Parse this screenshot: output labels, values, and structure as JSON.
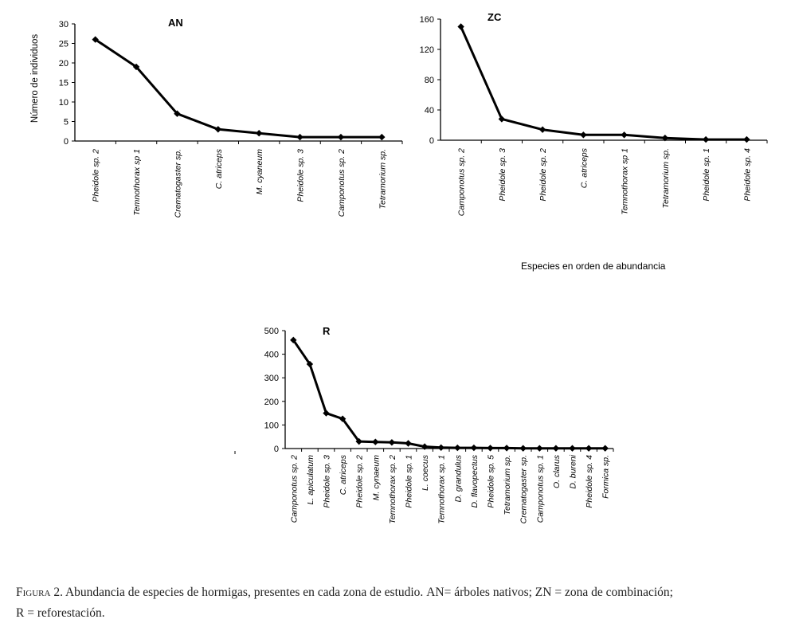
{
  "chart_data": [
    {
      "type": "line",
      "title": "AN",
      "ylabel": "Número de individuos",
      "ylim": [
        0,
        30
      ],
      "yticks": [
        0,
        5,
        10,
        15,
        20,
        25,
        30
      ],
      "categories": [
        "Pheidole sp. 2",
        "Temnothorax sp 1",
        "Crematogaster sp.",
        "C. atriceps",
        "M. cyaneum",
        "Pheidole sp. 3",
        "Camponotus sp. 2",
        "Tetramorium sp."
      ],
      "values": [
        26,
        19,
        7,
        3,
        2,
        1,
        1,
        1
      ]
    },
    {
      "type": "line",
      "title": "ZC",
      "ylabel": "",
      "ylim": [
        0,
        160
      ],
      "yticks": [
        0,
        40,
        80,
        120,
        160
      ],
      "categories": [
        "Camponotus sp. 2",
        "Pheidole sp. 3",
        "Pheidole sp. 2",
        "C. atriceps",
        "Temnothorax sp 1",
        "Tetramorium sp.",
        "Pheidole sp. 1",
        "Pheidole sp. 4"
      ],
      "values": [
        150,
        28,
        14,
        7,
        7,
        3,
        1,
        1
      ]
    },
    {
      "type": "line",
      "title": "R",
      "ylabel": "",
      "ylim": [
        0,
        500
      ],
      "yticks": [
        0,
        100,
        200,
        300,
        400,
        500
      ],
      "categories": [
        "Camponotus sp. 2",
        "L. apiculatum",
        "Pheidole sp. 3",
        "C. atriceps",
        "Pheidole sp. 2",
        "M. cynaeum",
        "Temnothorax sp. 2",
        "Pheidole sp. 1",
        "L. coecus",
        "Temnothorax sp. 1",
        "D. grandulus",
        "D. flavopectus",
        "Pheidole sp. 5",
        "Tetramorium sp.",
        "Crematogaster sp.",
        "Camponotus sp. 1",
        "O. clarus",
        "D. bureni",
        "Pheidole sp. 4",
        "Formica sp."
      ],
      "values": [
        460,
        358,
        150,
        126,
        30,
        28,
        26,
        22,
        8,
        4,
        3,
        3,
        2,
        2,
        1,
        1,
        1,
        1,
        1,
        1
      ]
    }
  ],
  "shared_xlabel": "Especies en orden de abundancia",
  "caption": {
    "figure_label": "Figura 2.",
    "text": "Abundancia de  especies de hormigas, presentes en cada zona de estudio. ",
    "an_abbr": "AN",
    "an_def": "= árboles nativos; ",
    "zn_abbr": "ZN",
    "zn_def": " = zona de combinación;",
    "r_def": "R = reforestación."
  }
}
